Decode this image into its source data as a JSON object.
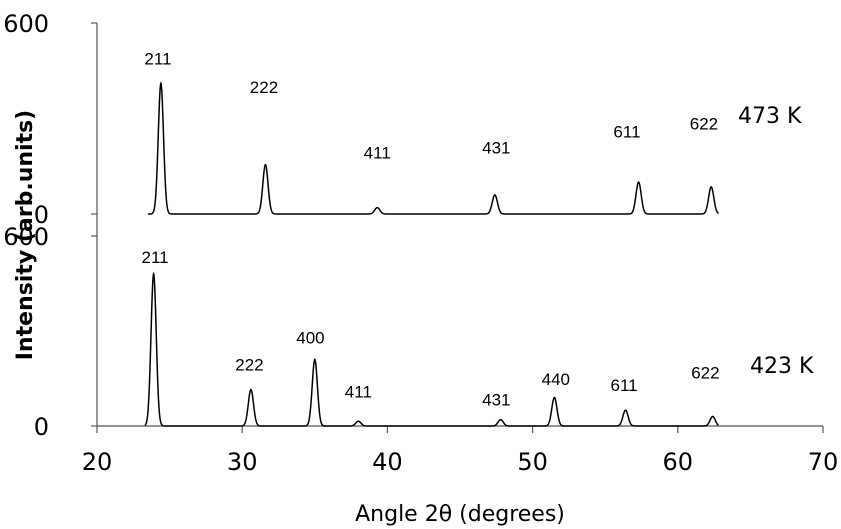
{
  "chart_data": {
    "type": "line",
    "xlabel": "Angle 2θ (degrees)",
    "ylabel": "Intensity (arb.units)",
    "xlim": [
      20,
      70
    ],
    "x_ticks": [
      "20",
      "30",
      "40",
      "50",
      "60",
      "70"
    ],
    "grid": false,
    "panels": [
      {
        "name": "473 K",
        "ylim": [
          0,
          600
        ],
        "y_ticks": [
          "600",
          "0"
        ],
        "x_range": [
          23.5,
          62.8
        ],
        "peaks": [
          {
            "label": "211",
            "x": 24.4,
            "y": 410
          },
          {
            "label": "222",
            "x": 31.6,
            "y": 155
          },
          {
            "label": "411",
            "x": 39.3,
            "y": 20
          },
          {
            "label": "431",
            "x": 47.4,
            "y": 60
          },
          {
            "label": "611",
            "x": 57.3,
            "y": 100
          },
          {
            "label": "622",
            "x": 62.3,
            "y": 85
          }
        ],
        "peak_labels": [
          {
            "text": "211",
            "x": 24.2,
            "y": 470
          },
          {
            "text": "222",
            "x": 31.5,
            "y": 380
          },
          {
            "text": "411",
            "x": 39.3,
            "y": 175
          },
          {
            "text": "431",
            "x": 47.5,
            "y": 190
          },
          {
            "text": "611",
            "x": 56.5,
            "y": 240
          },
          {
            "text": "622",
            "x": 61.8,
            "y": 265
          }
        ]
      },
      {
        "name": "423 K",
        "ylim": [
          0,
          600
        ],
        "y_ticks": [
          "600",
          "0"
        ],
        "x_range": [
          23.3,
          62.8
        ],
        "peaks": [
          {
            "label": "211",
            "x": 23.9,
            "y": 480
          },
          {
            "label": "222",
            "x": 30.6,
            "y": 115
          },
          {
            "label": "400",
            "x": 35.0,
            "y": 210
          },
          {
            "label": "411",
            "x": 38.0,
            "y": 15
          },
          {
            "label": "431",
            "x": 47.8,
            "y": 20
          },
          {
            "label": "440",
            "x": 51.5,
            "y": 90
          },
          {
            "label": "611",
            "x": 56.4,
            "y": 50
          },
          {
            "label": "622",
            "x": 62.4,
            "y": 30
          }
        ],
        "peak_labels": [
          {
            "text": "211",
            "x": 24.0,
            "y": 515
          },
          {
            "text": "222",
            "x": 30.5,
            "y": 175
          },
          {
            "text": "400",
            "x": 34.7,
            "y": 260
          },
          {
            "text": "411",
            "x": 38.0,
            "y": 90
          },
          {
            "text": "431",
            "x": 47.5,
            "y": 65
          },
          {
            "text": "440",
            "x": 51.6,
            "y": 130
          },
          {
            "text": "611",
            "x": 56.3,
            "y": 110
          },
          {
            "text": "622",
            "x": 61.9,
            "y": 150
          }
        ]
      }
    ]
  }
}
